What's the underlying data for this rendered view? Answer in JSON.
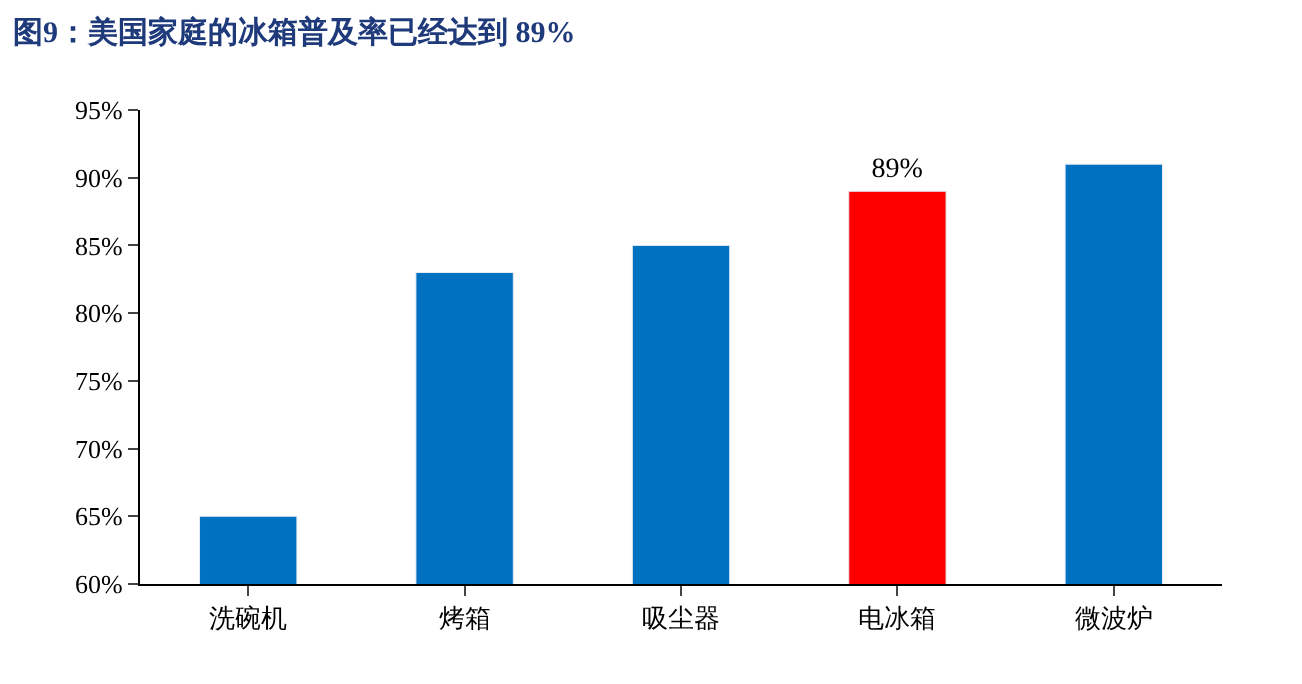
{
  "chart_data": {
    "type": "bar",
    "title": "图9：美国家庭的冰箱普及率已经达到 89%",
    "categories": [
      "洗碗机",
      "烤箱",
      "吸尘器",
      "电冰箱",
      "微波炉"
    ],
    "values": [
      65,
      83,
      85,
      89,
      91
    ],
    "colors": [
      "#0070c0",
      "#0070c0",
      "#0070c0",
      "#ff0000",
      "#0070c0"
    ],
    "value_labels": [
      null,
      null,
      null,
      "89%",
      null
    ],
    "yticks": [
      {
        "value": 60,
        "label": "60%"
      },
      {
        "value": 65,
        "label": "65%"
      },
      {
        "value": 70,
        "label": "70%"
      },
      {
        "value": 75,
        "label": "75%"
      },
      {
        "value": 80,
        "label": "80%"
      },
      {
        "value": 85,
        "label": "85%"
      },
      {
        "value": 90,
        "label": "90%"
      },
      {
        "value": 95,
        "label": "95%"
      }
    ],
    "ylim": [
      60,
      95
    ]
  }
}
